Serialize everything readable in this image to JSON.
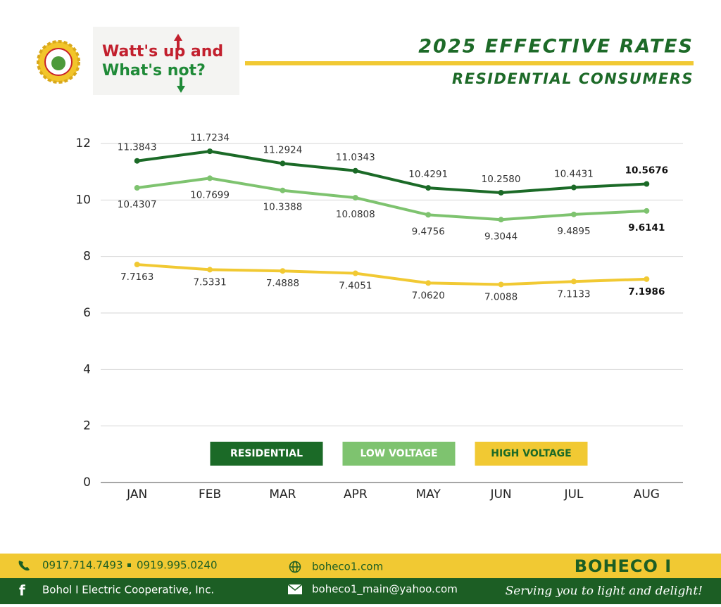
{
  "header": {
    "logo_line1": "Watt's up and",
    "logo_line2": "What's not?",
    "title": "2025 EFFECTIVE RATES",
    "subtitle": "RESIDENTIAL CONSUMERS"
  },
  "chart_data": {
    "type": "line",
    "categories": [
      "JAN",
      "FEB",
      "MAR",
      "APR",
      "MAY",
      "JUN",
      "JUL",
      "AUG"
    ],
    "series": [
      {
        "name": "RESIDENTIAL",
        "color": "#1b6a27",
        "values": [
          11.3843,
          11.7234,
          11.2924,
          11.0343,
          10.4291,
          10.258,
          10.4431,
          10.5676
        ],
        "value_labels": [
          "11.3843",
          "11.7234",
          "11.2924",
          "11.0343",
          "10.4291",
          "10.2580",
          "10.4431",
          "10.5676"
        ]
      },
      {
        "name": "LOW VOLTAGE",
        "color": "#7ec36f",
        "values": [
          10.4307,
          10.7699,
          10.3388,
          10.0808,
          9.4756,
          9.3044,
          9.4895,
          9.6141
        ],
        "value_labels": [
          "10.4307",
          "10.7699",
          "10.3388",
          "10.0808",
          "9.4756",
          "9.3044",
          "9.4895",
          "9.6141"
        ]
      },
      {
        "name": "HIGH VOLTAGE",
        "color": "#f1c933",
        "values": [
          7.7163,
          7.5331,
          7.4888,
          7.4051,
          7.062,
          7.0088,
          7.1133,
          7.1986
        ],
        "value_labels": [
          "7.7163",
          "7.5331",
          "7.4888",
          "7.4051",
          "7.0620",
          "7.0088",
          "7.1133",
          "7.1986"
        ]
      }
    ],
    "ylim": [
      0,
      12
    ],
    "yticks": [
      0,
      2,
      4,
      6,
      8,
      10,
      12
    ],
    "grid": true,
    "legend": "bottom"
  },
  "footer": {
    "phone1": "0917.714.7493",
    "phone2": "0919.995.0240",
    "website": "boheco1.com",
    "organization": "Bohol I Electric Cooperative, Inc.",
    "email": "boheco1_main@yahoo.com",
    "brand": "BOHECO I",
    "tagline": "Serving you to light and delight!"
  }
}
